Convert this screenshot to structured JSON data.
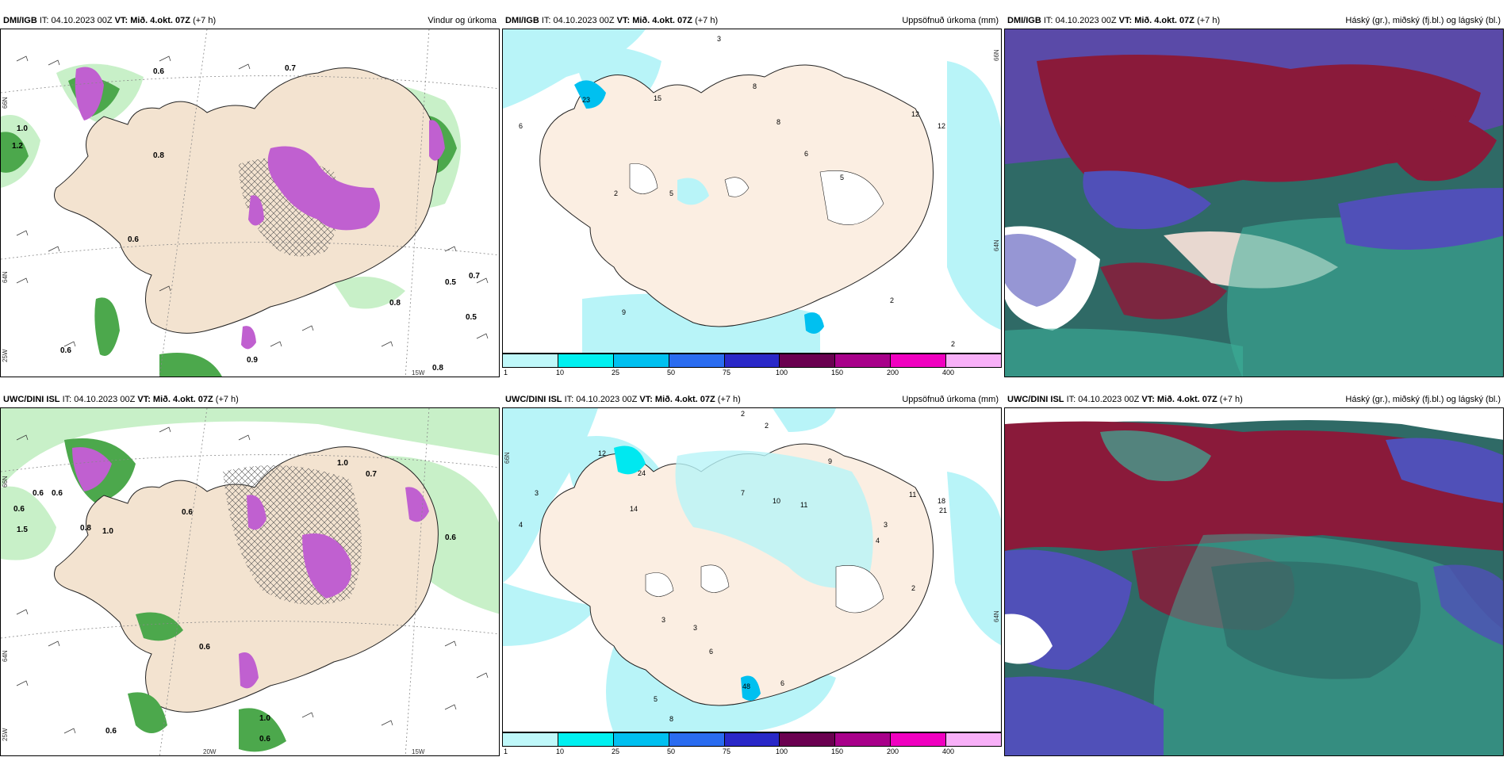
{
  "panels": [
    {
      "model": "DMI/IGB",
      "init": "IT: 04.10.2023 00Z",
      "valid": "VT: Mið. 4.okt. 07Z",
      "lead": "(+7 h)",
      "title": "Vindur og úrkoma",
      "lat_labels": [
        "66N",
        "64N",
        "25W"
      ],
      "lon_labels": [
        "15W"
      ],
      "values": [
        "0.6",
        "0.7",
        "1.0",
        "1.2",
        "0.8",
        "0.6",
        "0.5",
        "0.7",
        "0.8",
        "0.5",
        "0.6",
        "0.9",
        "0.8"
      ]
    },
    {
      "model": "DMI/IGB",
      "init": "IT: 04.10.2023 00Z",
      "valid": "VT: Mið. 4.okt. 07Z",
      "lead": "(+7 h)",
      "title": "Uppsöfnuð úrkoma (mm)",
      "lat_labels": [
        "66N",
        "64N"
      ],
      "values": [
        "3",
        "23",
        "15",
        "6",
        "8",
        "8",
        "6",
        "5",
        "12",
        "12",
        "2",
        "5",
        "9",
        "2",
        "2"
      ],
      "legend_ticks": [
        "1",
        "10",
        "25",
        "50",
        "75",
        "100",
        "150",
        "200",
        "400"
      ]
    },
    {
      "model": "DMI/IGB",
      "init": "IT: 04.10.2023 00Z",
      "valid": "VT: Mið. 4.okt. 07Z",
      "lead": "(+7 h)",
      "title": "Háský (gr.), miðský (fj.bl.) og lágský (bl.)"
    },
    {
      "model": "UWC/DINI ISL",
      "init": "IT: 04.10.2023 00Z",
      "valid": "VT: Mið. 4.okt. 07Z",
      "lead": "(+7 h)",
      "title": "",
      "lat_labels": [
        "66N",
        "64N",
        "25W"
      ],
      "lon_labels": [
        "20W",
        "15W"
      ],
      "values": [
        "0.6",
        "0.6",
        "0.6",
        "1.5",
        "0.8",
        "1.0",
        "0.6",
        "1.0",
        "0.7",
        "0.6",
        "0.6",
        "0.6",
        "1.0",
        "0.6"
      ]
    },
    {
      "model": "UWC/DINI ISL",
      "init": "IT: 04.10.2023 00Z",
      "valid": "VT: Mið. 4.okt. 07Z",
      "lead": "(+7 h)",
      "title": "Uppsöfnuð úrkoma (mm)",
      "lat_labels": [
        "66N",
        "64N"
      ],
      "values": [
        "2",
        "2",
        "3",
        "4",
        "24",
        "12",
        "14",
        "7",
        "10",
        "11",
        "9",
        "11",
        "18",
        "21",
        "3",
        "3",
        "6",
        "48",
        "6",
        "5",
        "8",
        "3",
        "2",
        "4"
      ],
      "legend_ticks": [
        "1",
        "10",
        "25",
        "50",
        "75",
        "100",
        "150",
        "200",
        "400"
      ]
    },
    {
      "model": "UWC/DINI ISL",
      "init": "IT: 04.10.2023 00Z",
      "valid": "VT: Mið. 4.okt. 07Z",
      "lead": "(+7 h)",
      "title": "Háský (gr.), miðský (fj.bl.) og lágský (bl.)"
    }
  ],
  "colors": {
    "land": "#f3e3d0",
    "precip_light": "#c8f0c8",
    "precip_mid": "#4ca84c",
    "precip_heavy": "#1a5a1a",
    "precip_purple": "#c060d0",
    "accum_light": "#b8f4f8",
    "cloud_high": "#3cb09a",
    "cloud_mid": "#8a1a3a",
    "cloud_low": "#5050b8"
  },
  "legend_colors": [
    "#bff8fa",
    "#00f0f0",
    "#00c0f0",
    "#2a6cf0",
    "#2a28c8",
    "#6a0050",
    "#a8008a",
    "#f000c0",
    "#f8b0f8"
  ]
}
